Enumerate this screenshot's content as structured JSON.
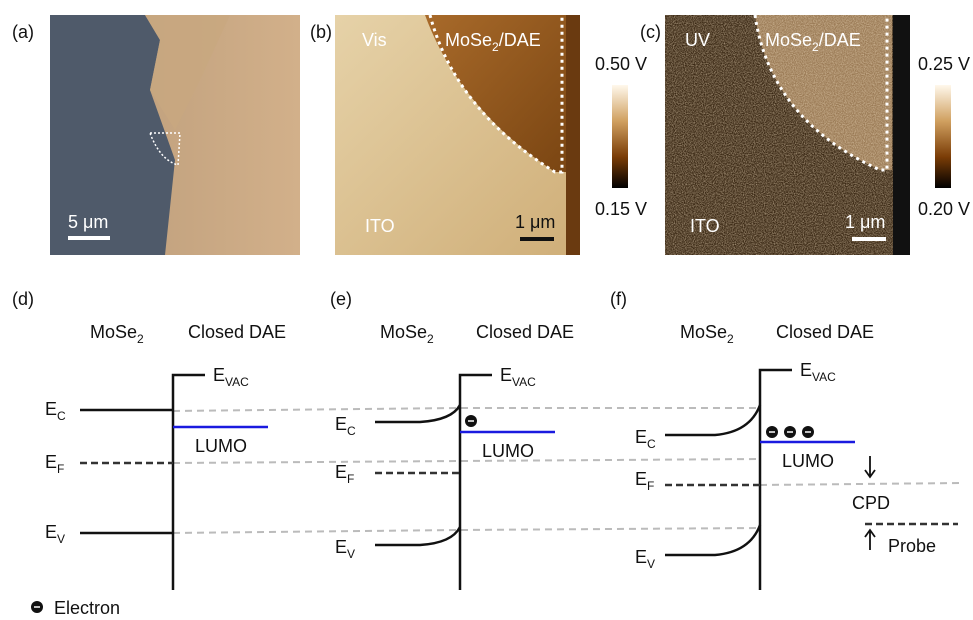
{
  "panels": {
    "a": {
      "label": "(a)",
      "scale_bar": "5 μm"
    },
    "b": {
      "label": "(b)",
      "mode": "Vis",
      "region": {
        "main": "MoSe",
        "sub": "2",
        "rest": "/DAE"
      },
      "substrate": "ITO",
      "scale_bar": "1 μm",
      "colorbar": {
        "max": "0.50 V",
        "min": "0.15 V"
      }
    },
    "c": {
      "label": "(c)",
      "mode": "UV",
      "region": {
        "main": "MoSe",
        "sub": "2",
        "rest": "/DAE"
      },
      "substrate": "ITO",
      "scale_bar": "1 μm",
      "colorbar": {
        "max": "0.25 V",
        "min": "0.20 V"
      }
    }
  },
  "diagrams": [
    {
      "label": "(d)",
      "left": {
        "main": "MoSe",
        "sub": "2"
      },
      "right": "Closed DAE",
      "evac": {
        "main": "E",
        "sub": "VAC"
      },
      "ec": {
        "main": "E",
        "sub": "C"
      },
      "ef": {
        "main": "E",
        "sub": "F"
      },
      "ev": {
        "main": "E",
        "sub": "V"
      },
      "lumo": "LUMO"
    },
    {
      "label": "(e)",
      "left": {
        "main": "MoSe",
        "sub": "2"
      },
      "right": "Closed DAE",
      "evac": {
        "main": "E",
        "sub": "VAC"
      },
      "ec": {
        "main": "E",
        "sub": "C"
      },
      "ef": {
        "main": "E",
        "sub": "F"
      },
      "ev": {
        "main": "E",
        "sub": "V"
      },
      "lumo": "LUMO"
    },
    {
      "label": "(f)",
      "left": {
        "main": "MoSe",
        "sub": "2"
      },
      "right": "Closed DAE",
      "evac": {
        "main": "E",
        "sub": "VAC"
      },
      "ec": {
        "main": "E",
        "sub": "C"
      },
      "ef": {
        "main": "E",
        "sub": "F"
      },
      "ev": {
        "main": "E",
        "sub": "V"
      },
      "lumo": "LUMO",
      "cpd": "CPD",
      "probe": "Probe"
    }
  ],
  "legend": {
    "electron": "Electron"
  }
}
